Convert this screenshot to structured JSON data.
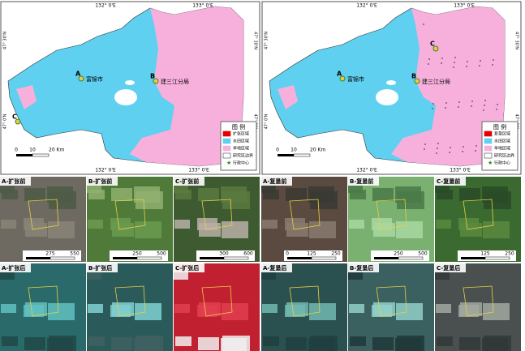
{
  "maps": [
    {
      "top_lon": [
        "132° 0'E",
        "133° 0'E"
      ],
      "bottom_lon": [
        "132° 0'E",
        "133° 0'E"
      ],
      "lat": [
        "47° 30'N",
        "47° 0'N"
      ],
      "places": [
        {
          "mark": "A",
          "name": "富锦市"
        },
        {
          "mark": "B",
          "name": "建三江分局"
        },
        {
          "mark": "C"
        }
      ],
      "legend": {
        "title": "图 例",
        "items": [
          "扩张区域",
          "水田区域",
          "旱地区域",
          "研究区边界",
          "行政中心"
        ]
      },
      "scale": [
        "0",
        "10",
        "20 Km"
      ]
    },
    {
      "top_lon": [
        "132° 0'E",
        "133° 0'E"
      ],
      "bottom_lon": [
        "132° 0'E",
        "133° 0'E"
      ],
      "lat": [
        "47° 30'N",
        "47° 0'N"
      ],
      "places": [
        {
          "mark": "A",
          "name": "富锦市"
        },
        {
          "mark": "B",
          "name": "建三江分局"
        },
        {
          "mark": "C"
        }
      ],
      "legend": {
        "title": "图 例",
        "items": [
          "复垦区域",
          "水田区域",
          "旱地区域",
          "研究区边界",
          "行政中心"
        ]
      },
      "scale": [
        "0",
        "10",
        "20 Km"
      ]
    }
  ],
  "panels": [
    {
      "label": "A-扩张前",
      "scale": [
        "275",
        "550"
      ]
    },
    {
      "label": "B-扩张前",
      "scale": [
        "250",
        "500"
      ]
    },
    {
      "label": "C-扩张前",
      "scale": [
        "300",
        "600"
      ]
    },
    {
      "label": "A-扩张后"
    },
    {
      "label": "B-扩张后"
    },
    {
      "label": "C-扩张后"
    },
    {
      "label": "A-复垦前",
      "scale": [
        "0",
        "125",
        "250"
      ]
    },
    {
      "label": "B-复垦前",
      "scale": [
        "250",
        "500"
      ]
    },
    {
      "label": "C-复垦前",
      "scale": [
        "125",
        "250"
      ]
    },
    {
      "label": "A-复垦后"
    },
    {
      "label": "B-复垦后"
    },
    {
      "label": "C-复垦后"
    }
  ]
}
